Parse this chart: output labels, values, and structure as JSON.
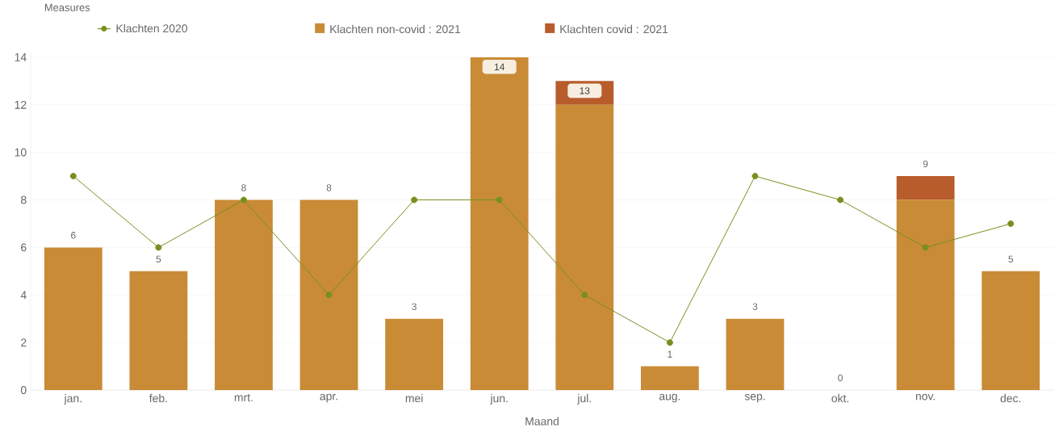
{
  "chart_data": {
    "type": "bar",
    "stacked": true,
    "legend_title": "Measures",
    "xlabel": "Maand",
    "categories": [
      "jan.",
      "feb.",
      "mrt.",
      "apr.",
      "mei",
      "jun.",
      "jul.",
      "aug.",
      "sep.",
      "okt.",
      "nov.",
      "dec."
    ],
    "series": [
      {
        "name": "Klachten 2020",
        "type": "line",
        "color": "#76901f",
        "marker": "circle",
        "values": [
          9,
          6,
          8,
          4,
          8,
          8,
          4,
          2,
          9,
          8,
          6,
          7
        ]
      },
      {
        "name": "Klachten non-covid : 2021",
        "color": "#c98b36",
        "values": [
          6,
          5,
          8,
          8,
          3,
          14,
          12,
          1,
          3,
          0,
          8,
          5
        ]
      },
      {
        "name": "Klachten covid : 2021",
        "color": "#b85c2c",
        "values": [
          0,
          0,
          0,
          0,
          0,
          0,
          1,
          0,
          0,
          0,
          1,
          0
        ]
      }
    ],
    "totals": [
      "6",
      "5",
      "8",
      "8",
      "3",
      "14",
      "13",
      "1",
      "3",
      "0",
      "9",
      "5"
    ],
    "ylim": [
      0,
      14.2
    ],
    "yticks": [
      0,
      2,
      4,
      6,
      8,
      10,
      12,
      14
    ],
    "grid": "y",
    "legend": "top left"
  }
}
